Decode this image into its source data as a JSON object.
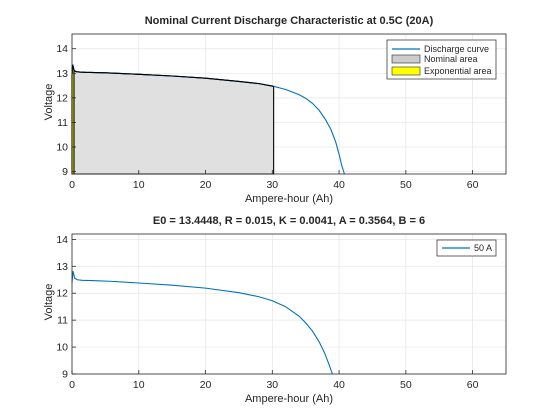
{
  "chart_data": [
    {
      "type": "line",
      "title": "Nominal Current Discharge Characteristic at 0.5C (20A)",
      "xlabel": "Ampere-hour (Ah)",
      "ylabel": "Voltage",
      "xlim": [
        0,
        65
      ],
      "ylim": [
        8.9,
        14.6
      ],
      "xticks": [
        0,
        10,
        20,
        30,
        40,
        50,
        60
      ],
      "yticks": [
        9,
        10,
        11,
        12,
        13,
        14
      ],
      "grid": true,
      "legend_position": "top-right",
      "legend": [
        "Discharge curve",
        "Nominal area",
        "Exponential area"
      ],
      "colors": {
        "curve": "#0072BD",
        "nominal": "#e0e0e0",
        "exponential": "#ffff00",
        "edge": "#000000"
      },
      "series": [
        {
          "name": "Discharge curve",
          "x": [
            0,
            0.1,
            0.3,
            0.5,
            0.8,
            1.2,
            2,
            5,
            10,
            15,
            20,
            25,
            28,
            30.2,
            32,
            34,
            35,
            36,
            37,
            38,
            38.8,
            39.5,
            40,
            40.4,
            40.8
          ],
          "y": [
            12.95,
            13.35,
            13.12,
            13.08,
            13.06,
            13.05,
            13.04,
            13.02,
            12.96,
            12.89,
            12.8,
            12.67,
            12.58,
            12.47,
            12.34,
            12.13,
            11.98,
            11.78,
            11.5,
            11.1,
            10.7,
            10.2,
            9.7,
            9.25,
            8.9
          ]
        },
        {
          "name": "Nominal area",
          "x": [
            0,
            0.1,
            0.3,
            0.5,
            0.8,
            1.2,
            2,
            5,
            10,
            15,
            20,
            25,
            28,
            30.2
          ],
          "y": [
            12.95,
            13.35,
            13.12,
            13.08,
            13.06,
            13.05,
            13.04,
            13.02,
            12.96,
            12.89,
            12.8,
            12.67,
            12.58,
            12.47
          ]
        },
        {
          "name": "Exponential area",
          "x": [
            0,
            0.1,
            0.3
          ],
          "y": [
            12.95,
            13.35,
            13.12
          ]
        }
      ]
    },
    {
      "type": "line",
      "title": "E0 = 13.4448, R = 0.015, K = 0.0041, A = 0.3564, B = 6",
      "xlabel": "Ampere-hour (Ah)",
      "ylabel": "Voltage",
      "xlim": [
        0,
        65
      ],
      "ylim": [
        9,
        14.2
      ],
      "xticks": [
        0,
        10,
        20,
        30,
        40,
        50,
        60
      ],
      "yticks": [
        9,
        10,
        11,
        12,
        13,
        14
      ],
      "grid": true,
      "legend_position": "top-right",
      "legend": [
        "50 A"
      ],
      "colors": {
        "curve": "#0072BD"
      },
      "series": [
        {
          "name": "50 A",
          "x": [
            0,
            0.15,
            0.4,
            0.8,
            1.5,
            3,
            6,
            10,
            15,
            20,
            25,
            28,
            30,
            32,
            34,
            35,
            36,
            37,
            37.8,
            38.5,
            39
          ],
          "y": [
            12.4,
            12.82,
            12.56,
            12.5,
            12.48,
            12.47,
            12.44,
            12.38,
            12.3,
            12.19,
            12.02,
            11.87,
            11.72,
            11.5,
            11.15,
            10.9,
            10.6,
            10.2,
            9.8,
            9.35,
            9.0
          ]
        }
      ]
    }
  ]
}
